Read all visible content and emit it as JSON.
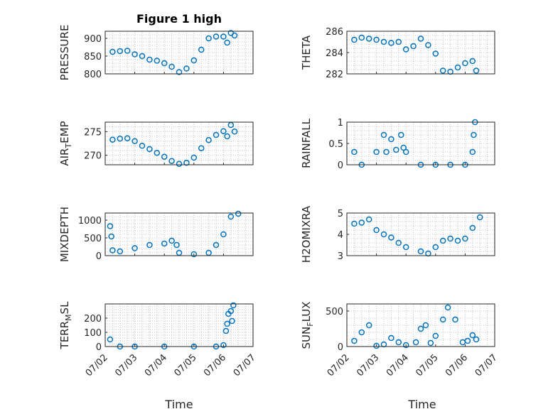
{
  "figure": {
    "title": "Figure 1 high",
    "xlabel": "Time"
  },
  "colors": {
    "marker": "#0072bd",
    "axis": "#262626",
    "grid": "#b4b4b4"
  },
  "chart_data": [
    {
      "type": "scatter",
      "ylabel": "PRESSURE",
      "title": "Figure 1 high",
      "ylim": [
        800,
        920
      ],
      "yticks": [
        800,
        850,
        900
      ],
      "xlim": [
        "07/02",
        "07/07"
      ],
      "xticks": [
        "07/02",
        "07/03",
        "07/04",
        "07/05",
        "07/06",
        "07/07"
      ],
      "show_xticklabels": false,
      "x": [
        "07/02 06:00",
        "07/02 12:00",
        "07/02 18:00",
        "07/03 00:00",
        "07/03 06:00",
        "07/03 12:00",
        "07/03 18:00",
        "07/04 00:00",
        "07/04 06:00",
        "07/04 12:00",
        "07/04 18:00",
        "07/05 00:00",
        "07/05 06:00",
        "07/05 12:00",
        "07/05 18:00",
        "07/06 00:00",
        "07/06 03:00",
        "07/06 06:00",
        "07/06 09:00"
      ],
      "y": [
        862,
        864,
        865,
        855,
        850,
        840,
        837,
        830,
        820,
        805,
        815,
        838,
        868,
        900,
        905,
        905,
        888,
        915,
        908
      ]
    },
    {
      "type": "scatter",
      "ylabel": "THETA",
      "ylim": [
        282,
        286
      ],
      "yticks": [
        282,
        284,
        286
      ],
      "xlim": [
        "07/02",
        "07/07"
      ],
      "xticks": [
        "07/02",
        "07/03",
        "07/04",
        "07/05",
        "07/06",
        "07/07"
      ],
      "show_xticklabels": false,
      "x": [
        "07/02 06:00",
        "07/02 12:00",
        "07/02 18:00",
        "07/03 00:00",
        "07/03 06:00",
        "07/03 12:00",
        "07/03 18:00",
        "07/04 00:00",
        "07/04 06:00",
        "07/04 12:00",
        "07/04 18:00",
        "07/05 00:00",
        "07/05 06:00",
        "07/05 12:00",
        "07/05 18:00",
        "07/06 00:00",
        "07/06 06:00",
        "07/06 09:00"
      ],
      "y": [
        285.2,
        285.4,
        285.3,
        285.2,
        285.0,
        284.9,
        285.0,
        284.3,
        284.6,
        285.3,
        284.7,
        283.9,
        282.3,
        282.2,
        282.6,
        283.0,
        283.2,
        282.3
      ]
    },
    {
      "type": "scatter",
      "ylabel": "AIR_TEMP",
      "ylim": [
        268,
        277
      ],
      "yticks": [
        270,
        275
      ],
      "xlim": [
        "07/02",
        "07/07"
      ],
      "xticks": [
        "07/02",
        "07/03",
        "07/04",
        "07/05",
        "07/06",
        "07/07"
      ],
      "show_xticklabels": false,
      "x": [
        "07/02 06:00",
        "07/02 12:00",
        "07/02 18:00",
        "07/03 00:00",
        "07/03 06:00",
        "07/03 12:00",
        "07/03 18:00",
        "07/04 00:00",
        "07/04 06:00",
        "07/04 12:00",
        "07/04 18:00",
        "07/05 00:00",
        "07/05 06:00",
        "07/05 12:00",
        "07/05 18:00",
        "07/06 00:00",
        "07/06 03:00",
        "07/06 06:00",
        "07/06 09:00"
      ],
      "y": [
        273.3,
        273.5,
        273.6,
        273.0,
        272.0,
        271.3,
        270.5,
        269.7,
        268.8,
        268.2,
        268.4,
        269.5,
        271.5,
        273.2,
        274.3,
        275.1,
        274.0,
        276.4,
        275.0
      ]
    },
    {
      "type": "scatter",
      "ylabel": "RAINFALL",
      "ylim": [
        0,
        1
      ],
      "yticks": [
        0,
        0.5,
        1
      ],
      "xlim": [
        "07/02",
        "07/07"
      ],
      "xticks": [
        "07/02",
        "07/03",
        "07/04",
        "07/05",
        "07/06",
        "07/07"
      ],
      "show_xticklabels": false,
      "x": [
        "07/02 06:00",
        "07/02 12:00",
        "07/03 00:00",
        "07/03 06:00",
        "07/03 08:00",
        "07/03 12:00",
        "07/03 16:00",
        "07/03 20:00",
        "07/03 22:00",
        "07/04 00:00",
        "07/04 12:00",
        "07/05 00:00",
        "07/05 12:00",
        "07/06 00:00",
        "07/06 06:00",
        "07/06 07:00",
        "07/06 08:00"
      ],
      "y": [
        0.3,
        0,
        0.3,
        0.7,
        0.3,
        0.6,
        0.35,
        0.7,
        0.4,
        0.3,
        0,
        0,
        0,
        0,
        0.3,
        0.7,
        1.0
      ]
    },
    {
      "type": "scatter",
      "ylabel": "MIXDEPTH",
      "ylim": [
        0,
        1200
      ],
      "yticks": [
        0,
        500,
        1000
      ],
      "xlim": [
        "07/02",
        "07/07"
      ],
      "xticks": [
        "07/02",
        "07/03",
        "07/04",
        "07/05",
        "07/06",
        "07/07"
      ],
      "show_xticklabels": false,
      "x": [
        "07/02 04:00",
        "07/02 05:00",
        "07/02 06:00",
        "07/02 12:00",
        "07/03 00:00",
        "07/03 12:00",
        "07/04 00:00",
        "07/04 06:00",
        "07/04 10:00",
        "07/04 12:00",
        "07/05 00:00",
        "07/05 12:00",
        "07/05 18:00",
        "07/06 00:00",
        "07/06 06:00",
        "07/06 12:00"
      ],
      "y": [
        830,
        540,
        150,
        120,
        210,
        300,
        340,
        420,
        300,
        80,
        40,
        80,
        300,
        600,
        1100,
        1180
      ]
    },
    {
      "type": "scatter",
      "ylabel": "H2OMIXRA",
      "ylim": [
        3,
        5
      ],
      "yticks": [
        3,
        4,
        5
      ],
      "xlim": [
        "07/02",
        "07/07"
      ],
      "xticks": [
        "07/02",
        "07/03",
        "07/04",
        "07/05",
        "07/06",
        "07/07"
      ],
      "show_xticklabels": false,
      "x": [
        "07/02 06:00",
        "07/02 12:00",
        "07/02 18:00",
        "07/03 00:00",
        "07/03 06:00",
        "07/03 12:00",
        "07/03 18:00",
        "07/04 00:00",
        "07/04 12:00",
        "07/04 18:00",
        "07/05 00:00",
        "07/05 06:00",
        "07/05 12:00",
        "07/05 18:00",
        "07/06 00:00",
        "07/06 06:00",
        "07/06 12:00"
      ],
      "y": [
        4.5,
        4.55,
        4.7,
        4.2,
        4.0,
        3.85,
        3.6,
        3.4,
        3.2,
        3.1,
        3.4,
        3.7,
        3.8,
        3.7,
        3.8,
        4.3,
        4.8
      ]
    },
    {
      "type": "scatter",
      "ylabel": "TERR_MSL",
      "ylim": [
        0,
        300
      ],
      "yticks": [
        0,
        100,
        200
      ],
      "xlim": [
        "07/02",
        "07/07"
      ],
      "xticks": [
        "07/02",
        "07/03",
        "07/04",
        "07/05",
        "07/06",
        "07/07"
      ],
      "x": [
        "07/02 04:00",
        "07/02 12:00",
        "07/03 00:00",
        "07/04 00:00",
        "07/05 00:00",
        "07/05 18:00",
        "07/06 00:00",
        "07/06 02:00",
        "07/06 03:00",
        "07/06 04:00",
        "07/06 06:00",
        "07/06 07:00",
        "07/06 08:00"
      ],
      "y": [
        50,
        0,
        0,
        0,
        0,
        0,
        10,
        110,
        160,
        230,
        250,
        180,
        290
      ]
    },
    {
      "type": "scatter",
      "ylabel": "SUN_FLUX",
      "ylim": [
        0,
        600
      ],
      "yticks": [
        0,
        500
      ],
      "xlim": [
        "07/02",
        "07/07"
      ],
      "xticks": [
        "07/02",
        "07/03",
        "07/04",
        "07/05",
        "07/06",
        "07/07"
      ],
      "x": [
        "07/02 06:00",
        "07/02 12:00",
        "07/02 18:00",
        "07/03 00:00",
        "07/03 06:00",
        "07/03 12:00",
        "07/03 18:00",
        "07/04 00:00",
        "07/04 08:00",
        "07/04 12:00",
        "07/04 16:00",
        "07/04 20:00",
        "07/05 00:00",
        "07/05 06:00",
        "07/05 10:00",
        "07/05 16:00",
        "07/05 22:00",
        "07/06 02:00",
        "07/06 06:00",
        "07/06 09:00"
      ],
      "y": [
        80,
        200,
        300,
        10,
        30,
        120,
        60,
        20,
        60,
        250,
        300,
        50,
        150,
        380,
        550,
        380,
        60,
        80,
        160,
        100
      ]
    }
  ]
}
